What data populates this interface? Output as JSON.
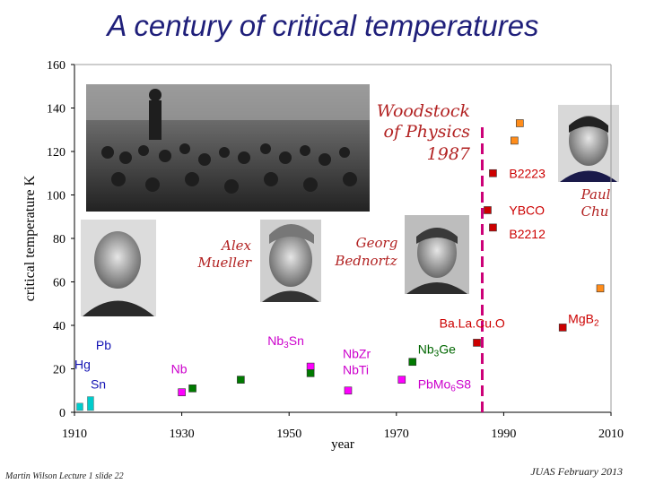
{
  "slide": {
    "title": "A century of critical temperatures",
    "footer_left": "Martin Wilson Lecture 1 slide 22",
    "footer_right": "JUAS February 2013"
  },
  "photos": {
    "woodstock": "Woodstock of Physics 1987",
    "woodstock_lines": [
      "Woodstock",
      "of Physics",
      "1987"
    ],
    "mueller": [
      "Alex",
      "Mueller"
    ],
    "bednorz": [
      "Georg",
      "Bednortz"
    ],
    "chu": [
      "Paul",
      "Chu"
    ]
  },
  "colors": {
    "low_tc": "#00cccc",
    "alloy": "#ff00ff",
    "compound": "#007a00",
    "cuprate": "#cc0000",
    "cuprate_orange": "#ff8c1a",
    "label_blue": "#1414b4",
    "label_magenta": "#cc00cc",
    "label_green": "#006600",
    "label_red": "#cc0000",
    "divider": "#cc0077",
    "handwriting": "#b22222"
  },
  "chart_data": {
    "type": "scatter",
    "xlabel": "year",
    "ylabel": "critical temperature K",
    "xlim": [
      1910,
      2010
    ],
    "ylim": [
      0,
      160
    ],
    "xticks": [
      1910,
      1930,
      1950,
      1970,
      1990,
      2010
    ],
    "yticks": [
      0,
      20,
      40,
      60,
      80,
      100,
      120,
      140,
      160
    ],
    "points": [
      {
        "x": 1911,
        "y": 4.2,
        "group": "low_tc",
        "shape": "bar"
      },
      {
        "x": 1913,
        "y": 7.2,
        "group": "low_tc",
        "shape": "bar"
      },
      {
        "x": 1930,
        "y": 9.2,
        "group": "alloy"
      },
      {
        "x": 1932,
        "y": 11,
        "group": "compound"
      },
      {
        "x": 1941,
        "y": 15,
        "group": "compound"
      },
      {
        "x": 1954,
        "y": 21,
        "group": "alloy"
      },
      {
        "x": 1954,
        "y": 18,
        "group": "compound"
      },
      {
        "x": 1961,
        "y": 10,
        "group": "alloy"
      },
      {
        "x": 1971,
        "y": 15,
        "group": "alloy"
      },
      {
        "x": 1973,
        "y": 23.2,
        "group": "compound"
      },
      {
        "x": 1985,
        "y": 32,
        "group": "cuprate"
      },
      {
        "x": 1987,
        "y": 93,
        "group": "cuprate"
      },
      {
        "x": 1988,
        "y": 85,
        "group": "cuprate"
      },
      {
        "x": 1988,
        "y": 110,
        "group": "cuprate"
      },
      {
        "x": 1993,
        "y": 133,
        "group": "cuprate_orange"
      },
      {
        "x": 1992,
        "y": 125,
        "group": "cuprate_orange"
      },
      {
        "x": 2001,
        "y": 39,
        "group": "cuprate"
      },
      {
        "x": 2008,
        "y": 57,
        "group": "cuprate_orange"
      }
    ],
    "divider_x": 1986,
    "labels": [
      {
        "text": "Pb",
        "base": "Pb",
        "sub": "",
        "tail": "",
        "x": 1914,
        "y": 31,
        "group": "label_blue"
      },
      {
        "text": "Hg",
        "base": "Hg",
        "sub": "",
        "tail": "",
        "x": 1910,
        "y": 22,
        "group": "label_blue"
      },
      {
        "text": "Sn",
        "base": "Sn",
        "sub": "",
        "tail": "",
        "x": 1913,
        "y": 13,
        "group": "label_blue"
      },
      {
        "text": "Nb",
        "base": "Nb",
        "sub": "",
        "tail": "",
        "x": 1928,
        "y": 20,
        "group": "label_magenta"
      },
      {
        "text": "Nb3Sn",
        "base": "Nb",
        "sub": "3",
        "tail": "Sn",
        "x": 1946,
        "y": 33,
        "group": "label_magenta"
      },
      {
        "text": "Nb3Ge",
        "base": "Nb",
        "sub": "3",
        "tail": "Ge",
        "x": 1974,
        "y": 29,
        "group": "label_green"
      },
      {
        "text": "NbZr",
        "base": "NbZr",
        "sub": "",
        "tail": "",
        "x": 1960,
        "y": 27,
        "group": "label_magenta"
      },
      {
        "text": "NbTi",
        "base": "NbTi",
        "sub": "",
        "tail": "",
        "x": 1960,
        "y": 19.5,
        "group": "label_magenta"
      },
      {
        "text": "PbMo6S8",
        "base": "PbMo",
        "sub": "6",
        "tail": "S8",
        "x": 1974,
        "y": 13,
        "group": "label_magenta"
      },
      {
        "text": "Ba.La.Cu.O",
        "base": "Ba.La.Cu.O",
        "sub": "",
        "tail": "",
        "x": 1978,
        "y": 41,
        "group": "label_red"
      },
      {
        "text": "B2223",
        "base": "B2223",
        "sub": "",
        "tail": "",
        "x": 1991,
        "y": 110,
        "group": "label_red"
      },
      {
        "text": "YBCO",
        "base": "YBCO",
        "sub": "",
        "tail": "",
        "x": 1991,
        "y": 93,
        "group": "label_red"
      },
      {
        "text": "B2212",
        "base": "B2212",
        "sub": "",
        "tail": "",
        "x": 1991,
        "y": 82,
        "group": "label_red"
      },
      {
        "text": "MgB2",
        "base": "MgB",
        "sub": "2",
        "tail": "",
        "x": 2002,
        "y": 43,
        "group": "label_red"
      }
    ]
  }
}
